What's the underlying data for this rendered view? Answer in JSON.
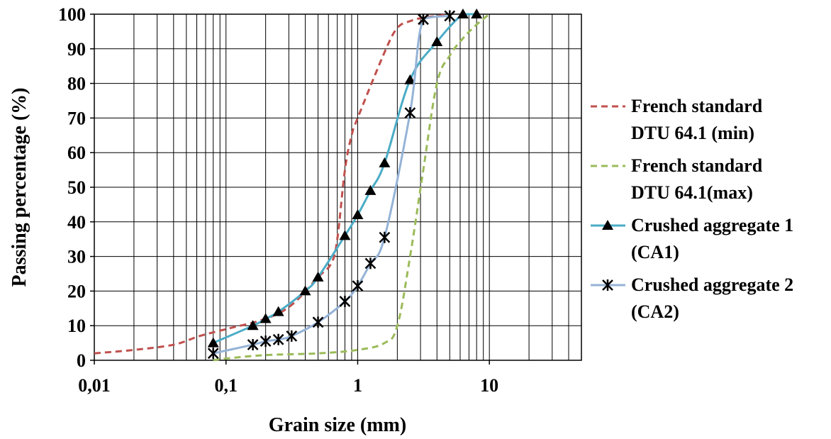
{
  "chart_data": {
    "type": "line",
    "xlabel": "Grain size (mm)",
    "ylabel": "Passing percentage (%)",
    "xscale": "log",
    "xlim": [
      0.01,
      50
    ],
    "ylim": [
      0,
      100
    ],
    "grid": "major and minor",
    "legend_placement": "right",
    "x_ticks": [
      {
        "value": 0.01,
        "label": "0,01"
      },
      {
        "value": 0.1,
        "label": "0,1"
      },
      {
        "value": 1,
        "label": "1"
      },
      {
        "value": 10,
        "label": "10"
      }
    ],
    "y_ticks": [
      {
        "value": 0,
        "label": "0"
      },
      {
        "value": 10,
        "label": "10"
      },
      {
        "value": 20,
        "label": "20"
      },
      {
        "value": 30,
        "label": "30"
      },
      {
        "value": 40,
        "label": "40"
      },
      {
        "value": 50,
        "label": "50"
      },
      {
        "value": 60,
        "label": "60"
      },
      {
        "value": 70,
        "label": "70"
      },
      {
        "value": 80,
        "label": "80"
      },
      {
        "value": 90,
        "label": "90"
      },
      {
        "value": 100,
        "label": "100"
      }
    ],
    "series": [
      {
        "name_lines": [
          "French standard",
          "DTU 64.1 (min)"
        ],
        "color": "#c0504d",
        "style": "dashed",
        "marker": "none",
        "points": [
          [
            0.01,
            2
          ],
          [
            0.02,
            3
          ],
          [
            0.04,
            4.5
          ],
          [
            0.063,
            7
          ],
          [
            0.1,
            9
          ],
          [
            0.2,
            12
          ],
          [
            0.315,
            16
          ],
          [
            0.5,
            24
          ],
          [
            0.63,
            28
          ],
          [
            0.7,
            35
          ],
          [
            0.8,
            55
          ],
          [
            0.9,
            65
          ],
          [
            1,
            70
          ],
          [
            1.6,
            89
          ],
          [
            2,
            96
          ],
          [
            2.5,
            98
          ],
          [
            3.15,
            99
          ],
          [
            4,
            99.5
          ],
          [
            5,
            100
          ]
        ]
      },
      {
        "name_lines": [
          "French standard",
          "DTU 64.1(max)"
        ],
        "color": "#9bbb59",
        "style": "dashed",
        "marker": "none",
        "points": [
          [
            0.08,
            0
          ],
          [
            0.1,
            0.5
          ],
          [
            0.2,
            1.5
          ],
          [
            0.5,
            2
          ],
          [
            1,
            3
          ],
          [
            1.6,
            5
          ],
          [
            2,
            10
          ],
          [
            2.5,
            30
          ],
          [
            3.15,
            55
          ],
          [
            4,
            80
          ],
          [
            5,
            88
          ],
          [
            6.3,
            93
          ],
          [
            8,
            97
          ],
          [
            10,
            100
          ]
        ]
      },
      {
        "name_lines": [
          "Crushed aggregate 1",
          "(CA1)"
        ],
        "color": "#4bacc6",
        "style": "solid",
        "marker": "triangle",
        "points": [
          [
            0.08,
            5
          ],
          [
            0.16,
            10
          ],
          [
            0.2,
            12
          ],
          [
            0.25,
            14
          ],
          [
            0.4,
            20
          ],
          [
            0.5,
            24
          ],
          [
            0.8,
            36
          ],
          [
            1,
            42
          ],
          [
            1.25,
            49
          ],
          [
            1.6,
            57
          ],
          [
            2.5,
            81
          ],
          [
            4,
            92
          ],
          [
            6.3,
            100
          ],
          [
            8,
            100
          ]
        ]
      },
      {
        "name_lines": [
          "Crushed aggregate 2",
          "(CA2)"
        ],
        "color": "#95b3d7",
        "style": "solid",
        "marker": "asterisk",
        "points": [
          [
            0.08,
            2
          ],
          [
            0.16,
            4.5
          ],
          [
            0.2,
            5.5
          ],
          [
            0.25,
            6
          ],
          [
            0.315,
            7
          ],
          [
            0.5,
            11
          ],
          [
            0.8,
            17
          ],
          [
            1,
            21.5
          ],
          [
            1.25,
            28
          ],
          [
            1.6,
            35.5
          ],
          [
            2.5,
            71.5
          ],
          [
            3.15,
            98.5
          ],
          [
            5,
            99.5
          ]
        ]
      }
    ]
  }
}
